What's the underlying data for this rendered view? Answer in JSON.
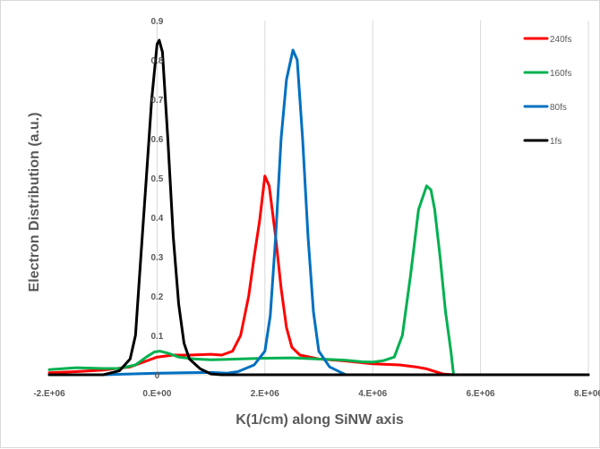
{
  "chart_data": {
    "type": "line",
    "xlabel": "K(1/cm) along SiNW axis",
    "ylabel": "Electron Distribution (a.u.)",
    "xlim": [
      -2000000,
      8000000
    ],
    "ylim": [
      0,
      0.9
    ],
    "x_ticks": [
      -2000000,
      0,
      2000000,
      4000000,
      6000000,
      8000000
    ],
    "x_tick_labels": [
      "-2.E+06",
      "0.E+00",
      "2.E+06",
      "4.E+06",
      "6.E+06",
      "8.E+06"
    ],
    "y_ticks": [
      0,
      0.1,
      0.2,
      0.3,
      0.4,
      0.5,
      0.6,
      0.7,
      0.8,
      0.9
    ],
    "y_tick_labels": [
      "0",
      "0.1",
      "0.2",
      "0.3",
      "0.4",
      "0.5",
      "0.6",
      "0.7",
      "0.8",
      "0.9"
    ],
    "legend_position": "top-right",
    "grid": "vertical",
    "series": [
      {
        "name": "240fs",
        "color": "#ff0000",
        "points": [
          [
            -2000000,
            0.005
          ],
          [
            -1500000,
            0.008
          ],
          [
            -1000000,
            0.012
          ],
          [
            -500000,
            0.02
          ],
          [
            -200000,
            0.035
          ],
          [
            0,
            0.045
          ],
          [
            300000,
            0.05
          ],
          [
            600000,
            0.05
          ],
          [
            1000000,
            0.052
          ],
          [
            1200000,
            0.05
          ],
          [
            1400000,
            0.06
          ],
          [
            1550000,
            0.1
          ],
          [
            1700000,
            0.2
          ],
          [
            1800000,
            0.3
          ],
          [
            1900000,
            0.39
          ],
          [
            2000000,
            0.505
          ],
          [
            2080000,
            0.48
          ],
          [
            2200000,
            0.35
          ],
          [
            2300000,
            0.22
          ],
          [
            2400000,
            0.12
          ],
          [
            2500000,
            0.07
          ],
          [
            2650000,
            0.05
          ],
          [
            3000000,
            0.04
          ],
          [
            3500000,
            0.035
          ],
          [
            4000000,
            0.028
          ],
          [
            4500000,
            0.025
          ],
          [
            4800000,
            0.02
          ],
          [
            5000000,
            0.015
          ],
          [
            5300000,
            0.002
          ],
          [
            5500000,
            0
          ],
          [
            8000000,
            0
          ]
        ]
      },
      {
        "name": "160fs",
        "color": "#00b050",
        "points": [
          [
            -2000000,
            0.013
          ],
          [
            -1500000,
            0.018
          ],
          [
            -1000000,
            0.016
          ],
          [
            -700000,
            0.016
          ],
          [
            -400000,
            0.025
          ],
          [
            -200000,
            0.045
          ],
          [
            -50000,
            0.058
          ],
          [
            50000,
            0.06
          ],
          [
            200000,
            0.055
          ],
          [
            400000,
            0.045
          ],
          [
            700000,
            0.04
          ],
          [
            1000000,
            0.038
          ],
          [
            1500000,
            0.04
          ],
          [
            2000000,
            0.042
          ],
          [
            2500000,
            0.043
          ],
          [
            3000000,
            0.04
          ],
          [
            3500000,
            0.037
          ],
          [
            3800000,
            0.033
          ],
          [
            4000000,
            0.032
          ],
          [
            4200000,
            0.036
          ],
          [
            4400000,
            0.045
          ],
          [
            4550000,
            0.1
          ],
          [
            4700000,
            0.25
          ],
          [
            4850000,
            0.42
          ],
          [
            5000000,
            0.48
          ],
          [
            5080000,
            0.47
          ],
          [
            5150000,
            0.42
          ],
          [
            5250000,
            0.3
          ],
          [
            5350000,
            0.16
          ],
          [
            5450000,
            0.06
          ],
          [
            5500000,
            0
          ],
          [
            8000000,
            0
          ]
        ]
      },
      {
        "name": "80fs",
        "color": "#0070c0",
        "points": [
          [
            -2000000,
            0
          ],
          [
            -1000000,
            0
          ],
          [
            -500000,
            0.002
          ],
          [
            0,
            0.004
          ],
          [
            500000,
            0.005
          ],
          [
            1000000,
            0.006
          ],
          [
            1300000,
            0.004
          ],
          [
            1500000,
            0.008
          ],
          [
            1800000,
            0.025
          ],
          [
            2000000,
            0.06
          ],
          [
            2100000,
            0.15
          ],
          [
            2200000,
            0.35
          ],
          [
            2300000,
            0.6
          ],
          [
            2400000,
            0.75
          ],
          [
            2520000,
            0.825
          ],
          [
            2600000,
            0.8
          ],
          [
            2700000,
            0.6
          ],
          [
            2800000,
            0.35
          ],
          [
            2900000,
            0.16
          ],
          [
            3000000,
            0.06
          ],
          [
            3200000,
            0.02
          ],
          [
            3500000,
            0
          ],
          [
            8000000,
            0
          ]
        ]
      },
      {
        "name": "1fs",
        "color": "#000000",
        "points": [
          [
            -2000000,
            0
          ],
          [
            -1500000,
            0
          ],
          [
            -1000000,
            0
          ],
          [
            -700000,
            0.01
          ],
          [
            -500000,
            0.04
          ],
          [
            -400000,
            0.1
          ],
          [
            -300000,
            0.3
          ],
          [
            -200000,
            0.5
          ],
          [
            -100000,
            0.7
          ],
          [
            0,
            0.84
          ],
          [
            40000,
            0.85
          ],
          [
            100000,
            0.82
          ],
          [
            200000,
            0.6
          ],
          [
            300000,
            0.35
          ],
          [
            400000,
            0.18
          ],
          [
            500000,
            0.08
          ],
          [
            600000,
            0.04
          ],
          [
            800000,
            0.015
          ],
          [
            1000000,
            0.002
          ],
          [
            1200000,
            0
          ],
          [
            8000000,
            0
          ]
        ]
      }
    ]
  }
}
